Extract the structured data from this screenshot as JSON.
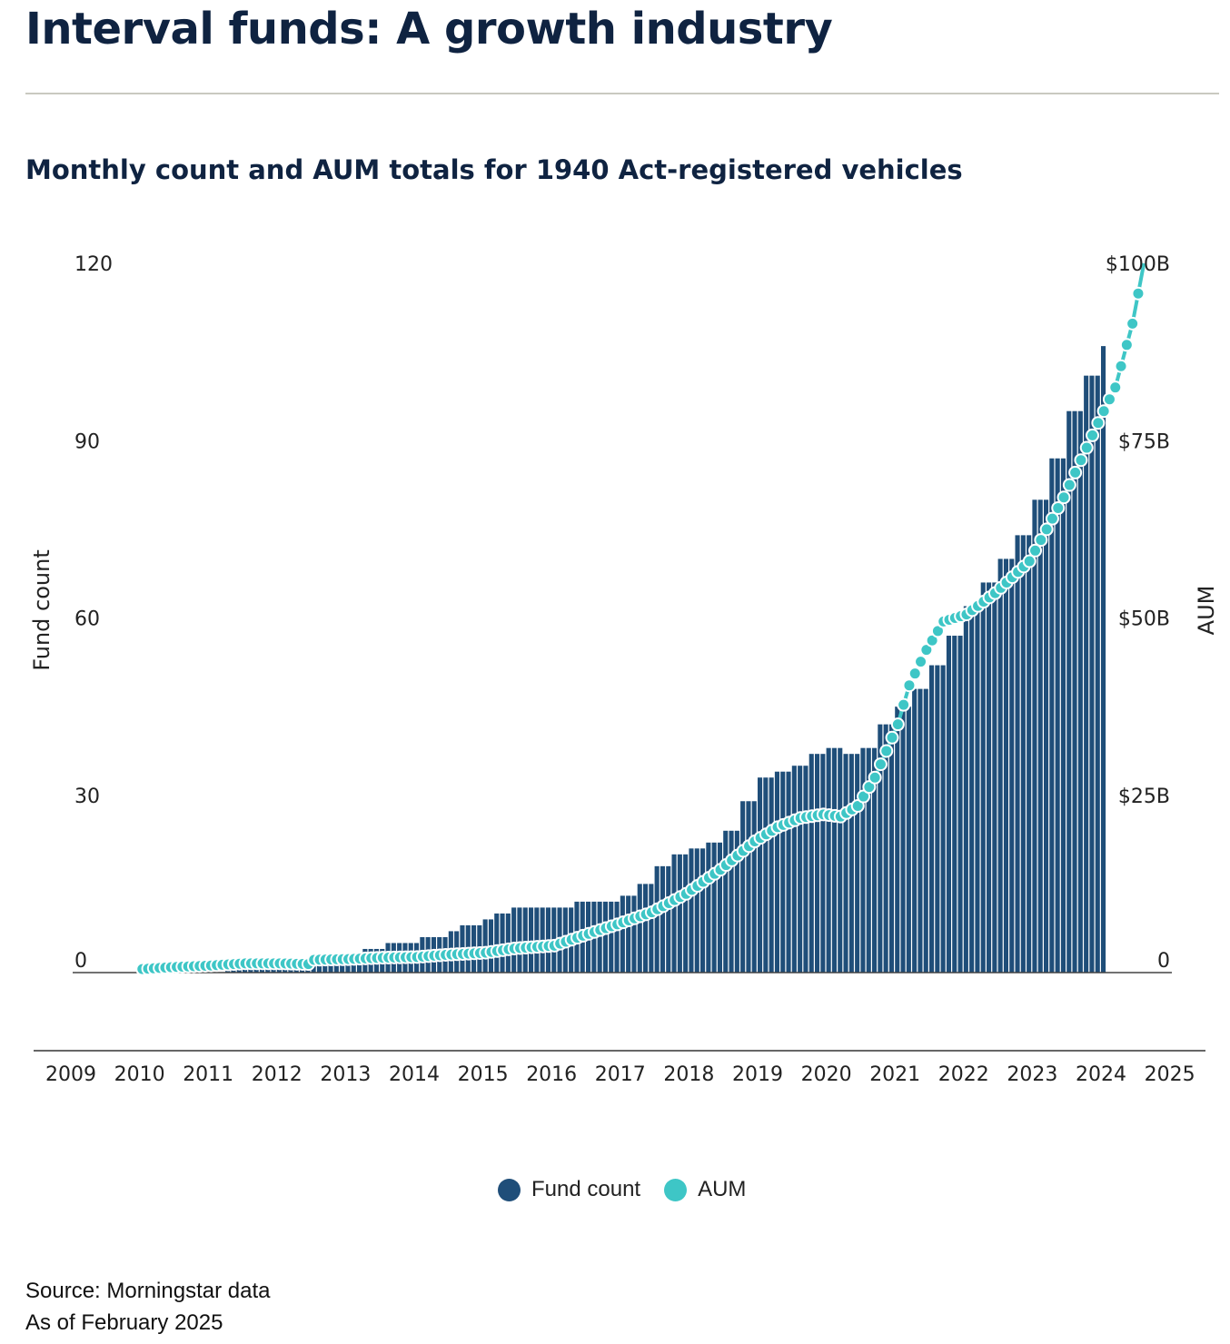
{
  "header": {
    "title": "Interval funds: A growth industry",
    "subtitle": "Monthly count and AUM totals for 1940 Act-registered vehicles"
  },
  "chart_data": {
    "type": "bar",
    "x_unit": "month",
    "left_axis": {
      "label": "Fund count",
      "ticks": [
        "0",
        "30",
        "60",
        "90",
        "120"
      ],
      "range": [
        0,
        120
      ]
    },
    "right_axis": {
      "label": "AUM",
      "ticks": [
        "0",
        "$25B",
        "$50B",
        "$75B",
        "$100B"
      ],
      "range": [
        0,
        100
      ],
      "unit": "$B"
    },
    "x_ticks": [
      "2009",
      "2010",
      "2011",
      "2012",
      "2013",
      "2014",
      "2015",
      "2016",
      "2017",
      "2018",
      "2019",
      "2020",
      "2021",
      "2022",
      "2023",
      "2024",
      "2025"
    ],
    "colors": {
      "fund_count": "#1f4e79",
      "aum": "#3ec6c6"
    },
    "series": [
      {
        "name": "Fund count",
        "kind": "bar",
        "points": [
          [
            "2010-01",
            0
          ],
          [
            "2010-07",
            0
          ],
          [
            "2011-01",
            0
          ],
          [
            "2011-04",
            1
          ],
          [
            "2012-06",
            1
          ],
          [
            "2012-07",
            3
          ],
          [
            "2013-01",
            3
          ],
          [
            "2013-04",
            4
          ],
          [
            "2013-08",
            5
          ],
          [
            "2014-01",
            5
          ],
          [
            "2014-02",
            6
          ],
          [
            "2014-07",
            7
          ],
          [
            "2014-09",
            8
          ],
          [
            "2015-01",
            9
          ],
          [
            "2015-03",
            10
          ],
          [
            "2015-06",
            11
          ],
          [
            "2016-01",
            11
          ],
          [
            "2016-05",
            12
          ],
          [
            "2016-12",
            12
          ],
          [
            "2017-01",
            13
          ],
          [
            "2017-04",
            15
          ],
          [
            "2017-07",
            18
          ],
          [
            "2017-10",
            20
          ],
          [
            "2018-01",
            21
          ],
          [
            "2018-04",
            22
          ],
          [
            "2018-07",
            24
          ],
          [
            "2018-10",
            29
          ],
          [
            "2019-01",
            33
          ],
          [
            "2019-04",
            34
          ],
          [
            "2019-07",
            35
          ],
          [
            "2019-10",
            37
          ],
          [
            "2020-01",
            38
          ],
          [
            "2020-04",
            37
          ],
          [
            "2020-07",
            38
          ],
          [
            "2020-10",
            42
          ],
          [
            "2021-01",
            45
          ],
          [
            "2021-04",
            48
          ],
          [
            "2021-07",
            52
          ],
          [
            "2021-10",
            57
          ],
          [
            "2022-01",
            62
          ],
          [
            "2022-04",
            66
          ],
          [
            "2022-07",
            70
          ],
          [
            "2022-10",
            74
          ],
          [
            "2023-01",
            80
          ],
          [
            "2023-04",
            87
          ],
          [
            "2023-07",
            95
          ],
          [
            "2023-10",
            101
          ],
          [
            "2024-01",
            106
          ]
        ]
      },
      {
        "name": "AUM",
        "kind": "line",
        "unit": "$B",
        "points": [
          [
            "2010-01",
            0.5
          ],
          [
            "2010-07",
            0.8
          ],
          [
            "2011-01",
            1
          ],
          [
            "2011-07",
            1.3
          ],
          [
            "2012-01",
            1.3
          ],
          [
            "2012-06",
            1.2
          ],
          [
            "2012-07",
            1.8
          ],
          [
            "2013-01",
            1.9
          ],
          [
            "2013-07",
            2.1
          ],
          [
            "2014-01",
            2.2
          ],
          [
            "2014-06",
            2.5
          ],
          [
            "2015-01",
            2.8
          ],
          [
            "2015-06",
            3.4
          ],
          [
            "2016-01",
            3.8
          ],
          [
            "2016-06",
            5.2
          ],
          [
            "2016-12",
            6.8
          ],
          [
            "2017-06",
            8.5
          ],
          [
            "2017-12",
            11.1
          ],
          [
            "2018-06",
            14.5
          ],
          [
            "2018-09",
            16.5
          ],
          [
            "2018-12",
            18.5
          ],
          [
            "2019-04",
            20.5
          ],
          [
            "2019-08",
            21.8
          ],
          [
            "2019-12",
            22.3
          ],
          [
            "2020-03",
            22
          ],
          [
            "2020-06",
            23.5
          ],
          [
            "2020-09",
            27.5
          ],
          [
            "2021-01",
            35
          ],
          [
            "2021-03",
            40.5
          ],
          [
            "2021-06",
            45.5
          ],
          [
            "2021-09",
            49.5
          ],
          [
            "2022-01",
            50.5
          ],
          [
            "2022-06",
            53.5
          ],
          [
            "2022-12",
            58
          ],
          [
            "2023-06",
            67
          ],
          [
            "2023-12",
            77.5
          ],
          [
            "2024-03",
            82.5
          ],
          [
            "2024-06",
            91.5
          ],
          [
            "2024-08",
            100
          ]
        ]
      }
    ],
    "legend": [
      "Fund count",
      "AUM"
    ],
    "legend_placement": "bottom-center",
    "grid": false
  },
  "footer": {
    "source": "Source: Morningstar data",
    "as_of": "As of February 2025"
  }
}
